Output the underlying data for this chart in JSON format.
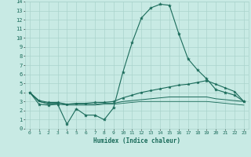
{
  "title": "",
  "xlabel": "Humidex (Indice chaleur)",
  "xlim": [
    -0.5,
    23.5
  ],
  "ylim": [
    0,
    14
  ],
  "xticks": [
    0,
    1,
    2,
    3,
    4,
    5,
    6,
    7,
    8,
    9,
    10,
    11,
    12,
    13,
    14,
    15,
    16,
    17,
    18,
    19,
    20,
    21,
    22,
    23
  ],
  "yticks": [
    0,
    1,
    2,
    3,
    4,
    5,
    6,
    7,
    8,
    9,
    10,
    11,
    12,
    13,
    14
  ],
  "background_color": "#c8eae4",
  "grid_color": "#aad4cc",
  "line_color": "#1a6b5a",
  "series": {
    "line1_x": [
      0,
      1,
      2,
      3,
      4,
      5,
      6,
      7,
      8,
      9,
      10,
      11,
      12,
      13,
      14,
      15,
      16,
      17,
      18,
      19,
      20,
      21,
      22,
      23
    ],
    "line1_y": [
      4.0,
      2.7,
      2.6,
      2.7,
      0.5,
      2.2,
      1.5,
      1.5,
      1.0,
      2.3,
      6.2,
      9.5,
      12.2,
      13.3,
      13.7,
      13.6,
      10.5,
      7.7,
      6.5,
      5.5,
      4.3,
      4.0,
      3.7,
      3.0
    ],
    "line2_x": [
      0,
      1,
      2,
      3,
      4,
      5,
      6,
      7,
      8,
      9,
      10,
      11,
      12,
      13,
      14,
      15,
      16,
      17,
      18,
      19,
      20,
      21,
      22,
      23
    ],
    "line2_y": [
      4.0,
      3.1,
      2.9,
      2.9,
      2.7,
      2.8,
      2.8,
      2.9,
      2.9,
      3.0,
      3.4,
      3.7,
      4.0,
      4.2,
      4.4,
      4.6,
      4.8,
      4.9,
      5.1,
      5.3,
      4.9,
      4.5,
      4.1,
      3.0
    ],
    "line3_x": [
      0,
      1,
      2,
      3,
      4,
      5,
      6,
      7,
      8,
      9,
      10,
      11,
      12,
      13,
      14,
      15,
      16,
      17,
      18,
      19,
      20,
      21,
      22,
      23
    ],
    "line3_y": [
      4.0,
      3.0,
      2.8,
      2.8,
      2.7,
      2.7,
      2.7,
      2.7,
      2.8,
      2.8,
      3.0,
      3.1,
      3.2,
      3.3,
      3.4,
      3.5,
      3.5,
      3.5,
      3.5,
      3.5,
      3.3,
      3.2,
      3.1,
      3.0
    ],
    "line4_x": [
      0,
      1,
      2,
      3,
      4,
      5,
      6,
      7,
      8,
      9,
      10,
      11,
      12,
      13,
      14,
      15,
      16,
      17,
      18,
      19,
      20,
      21,
      22,
      23
    ],
    "line4_y": [
      4.0,
      3.0,
      2.7,
      2.7,
      2.6,
      2.6,
      2.6,
      2.6,
      2.7,
      2.7,
      2.8,
      2.9,
      3.0,
      3.0,
      3.0,
      3.0,
      3.0,
      3.0,
      3.0,
      3.0,
      2.9,
      2.8,
      2.7,
      2.6
    ]
  }
}
